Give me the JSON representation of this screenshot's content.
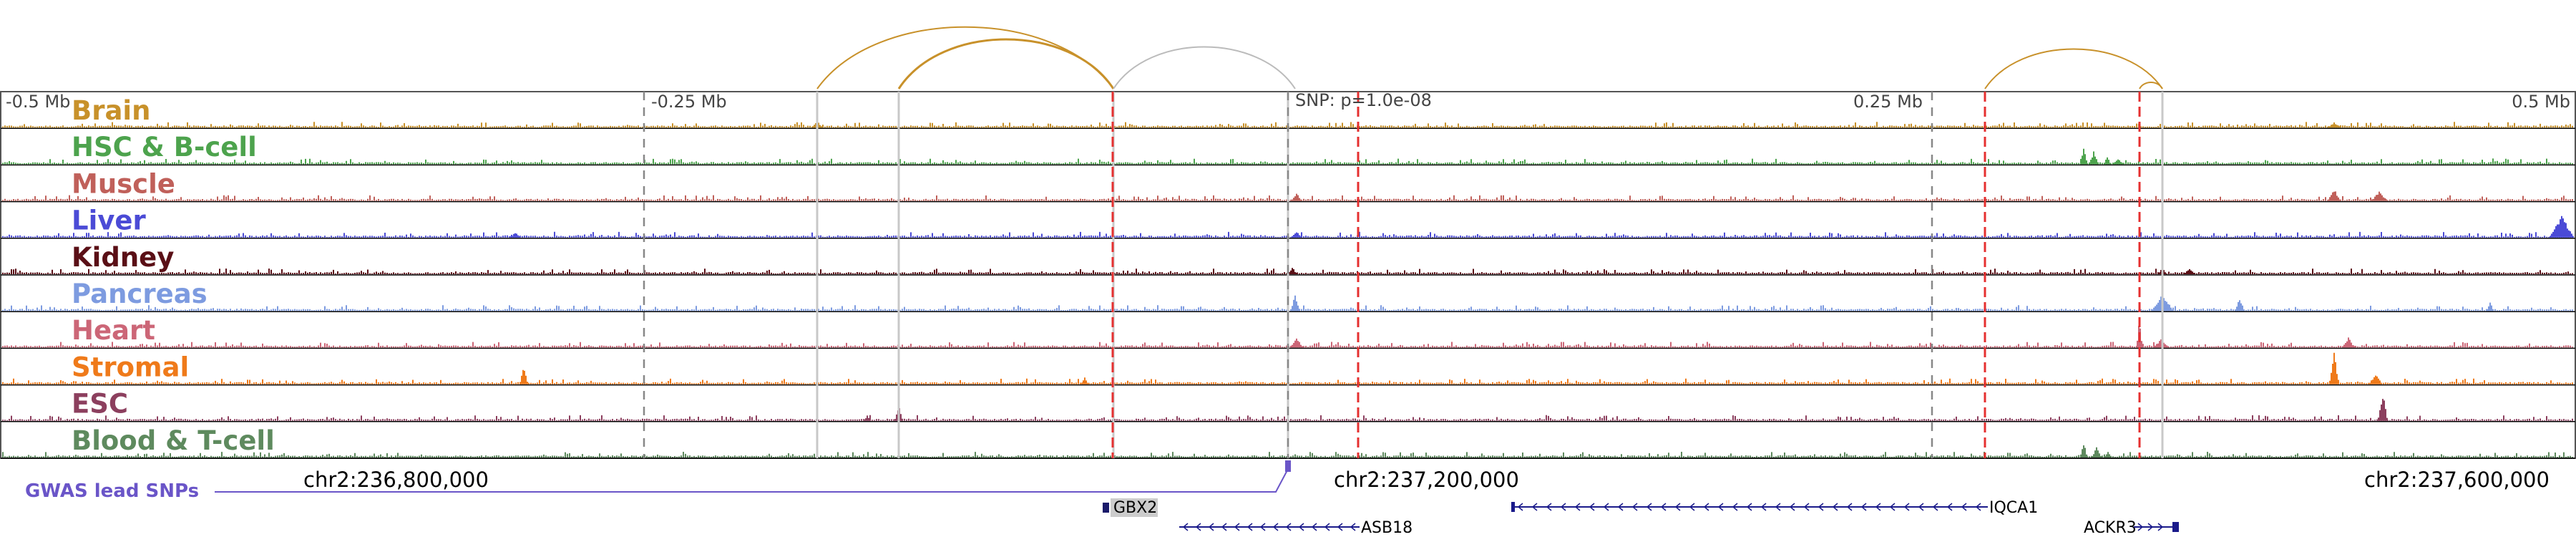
{
  "scale": {
    "left": "-0.5 Mb",
    "left_mid": "-0.25 Mb",
    "snp": "SNP: p=1.0e-08",
    "right_mid": "0.25 Mb",
    "right": "0.5 Mb"
  },
  "tracks": [
    {
      "name": "Brain",
      "color": "#c8912a"
    },
    {
      "name": "HSC & B-cell",
      "color": "#4da34d"
    },
    {
      "name": "Muscle",
      "color": "#c0605a"
    },
    {
      "name": "Liver",
      "color": "#4b4bd6"
    },
    {
      "name": "Kidney",
      "color": "#5a0f16"
    },
    {
      "name": "Pancreas",
      "color": "#7d9be0"
    },
    {
      "name": "Heart",
      "color": "#cc6677"
    },
    {
      "name": "Stromal",
      "color": "#ef7a1a"
    },
    {
      "name": "ESC",
      "color": "#8c3f5e"
    },
    {
      "name": "Blood & T-cell",
      "color": "#5e8a5e"
    }
  ],
  "gwas": {
    "label": "GWAS lead SNPs",
    "color": "#6a55c8"
  },
  "coordinates": [
    "chr2:236,800,000",
    "chr2:237,200,000",
    "chr2:237,600,000"
  ],
  "genes": [
    {
      "name": "GBX2",
      "strand": "+"
    },
    {
      "name": "ASB18",
      "strand": "-"
    },
    {
      "name": "IQCA1",
      "strand": "-"
    },
    {
      "name": "ACKR3",
      "strand": "+"
    }
  ],
  "colors": {
    "loop_arc": "#c8912a",
    "grey_arc": "#bbbbbb",
    "highlight": "#e53030",
    "divider": "#000000"
  }
}
